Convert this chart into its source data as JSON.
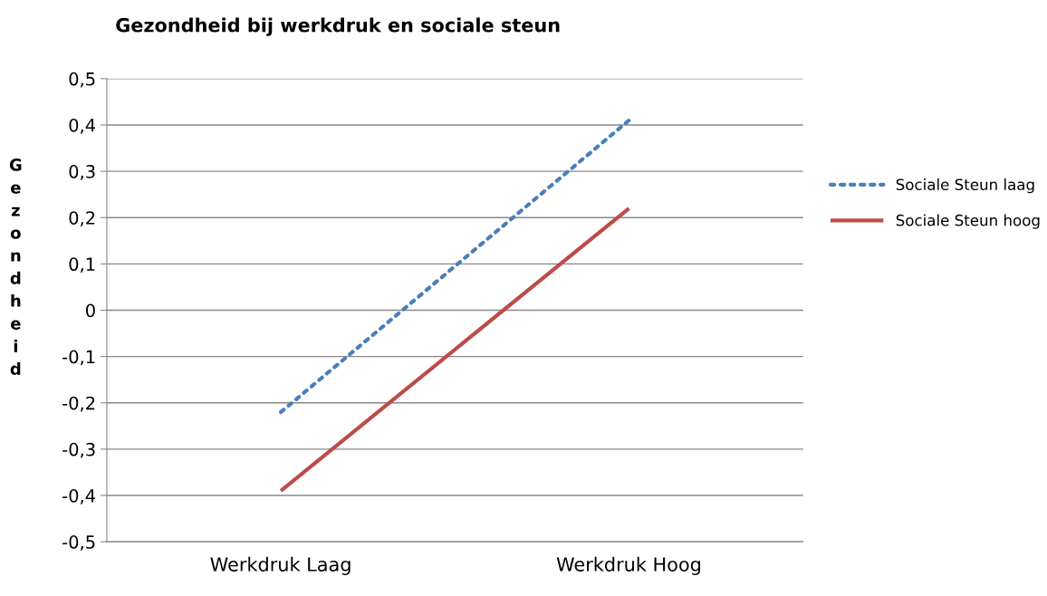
{
  "chart_data": {
    "type": "line",
    "title": "Gezondheid bij werkdruk en sociale steun",
    "ylabel": "Gezondheid",
    "categories": [
      "Werkdruk Laag",
      "Werkdruk Hoog"
    ],
    "series": [
      {
        "name": "Sociale Steun laag",
        "color": "#4a7ebb",
        "values": [
          -0.22,
          0.41
        ],
        "line_style": "dotted"
      },
      {
        "name": "Sociale Steun hoog",
        "color": "#be4b48",
        "values": [
          -0.39,
          0.22
        ],
        "line_style": "solid"
      }
    ],
    "ylim": [
      -0.5,
      0.5
    ],
    "yticks": [
      {
        "value": -0.5,
        "label": "-0,5"
      },
      {
        "value": -0.4,
        "label": "-0,4"
      },
      {
        "value": -0.3,
        "label": "-0,3"
      },
      {
        "value": -0.2,
        "label": "-0,2"
      },
      {
        "value": -0.1,
        "label": "-0,1"
      },
      {
        "value": 0,
        "label": "0"
      },
      {
        "value": 0.1,
        "label": "0,1"
      },
      {
        "value": 0.2,
        "label": "0,2"
      },
      {
        "value": 0.3,
        "label": "0,3"
      },
      {
        "value": 0.4,
        "label": "0,4"
      },
      {
        "value": 0.5,
        "label": "0,5"
      }
    ],
    "grid": "y",
    "legend": "right",
    "marker": "none"
  }
}
